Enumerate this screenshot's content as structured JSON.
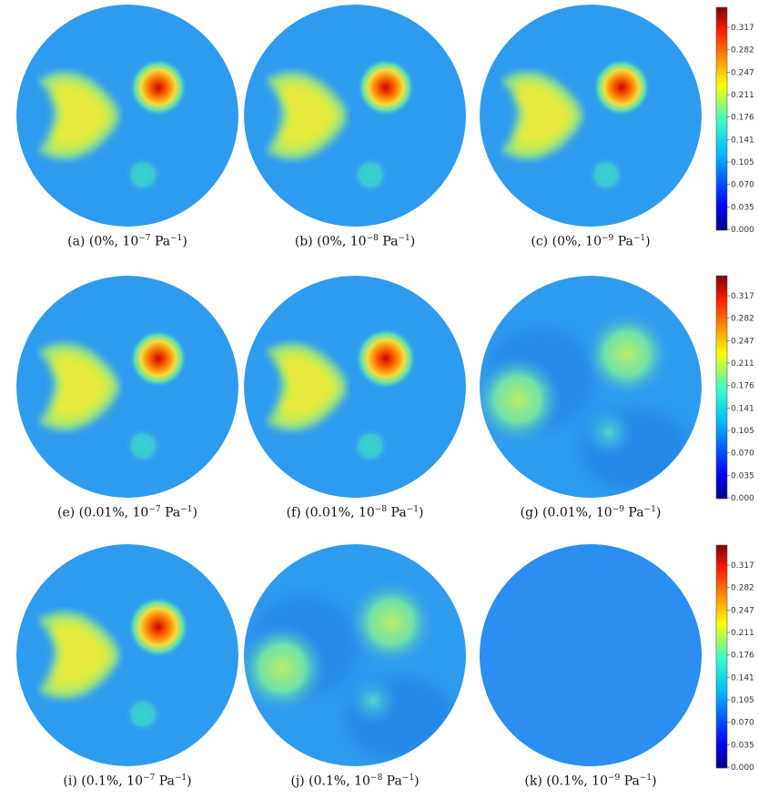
{
  "colorbar": {
    "ticks": [
      "0.317",
      "0.282",
      "0.247",
      "0.211",
      "0.176",
      "0.141",
      "0.105",
      "0.070",
      "0.035",
      "0.000"
    ]
  },
  "panels": [
    {
      "letter": "(a)",
      "noise": "0%",
      "exp": "−7",
      "style": "clean"
    },
    {
      "letter": "(b)",
      "noise": "0%",
      "exp": "−8",
      "style": "clean"
    },
    {
      "letter": "(c)",
      "noise": "0%",
      "exp": "−9",
      "style": "clean"
    },
    {
      "letter": "(e)",
      "noise": "0.01%",
      "exp": "−7",
      "style": "clean"
    },
    {
      "letter": "(f)",
      "noise": "0.01%",
      "exp": "−8",
      "style": "mild"
    },
    {
      "letter": "(g)",
      "noise": "0.01%",
      "exp": "−9",
      "style": "blurred"
    },
    {
      "letter": "(i)",
      "noise": "0.1%",
      "exp": "−7",
      "style": "mild"
    },
    {
      "letter": "(j)",
      "noise": "0.1%",
      "exp": "−8",
      "style": "blurred"
    },
    {
      "letter": "(k)",
      "noise": "0.1%",
      "exp": "−9",
      "style": "flat"
    }
  ],
  "unit": "Pa",
  "unit_exp": "−1",
  "colors": {
    "background": "#2f9bee",
    "hot": "#d40000",
    "yellow": "#e6e636",
    "cyan": "#33d6c8",
    "dark": "#000080"
  }
}
